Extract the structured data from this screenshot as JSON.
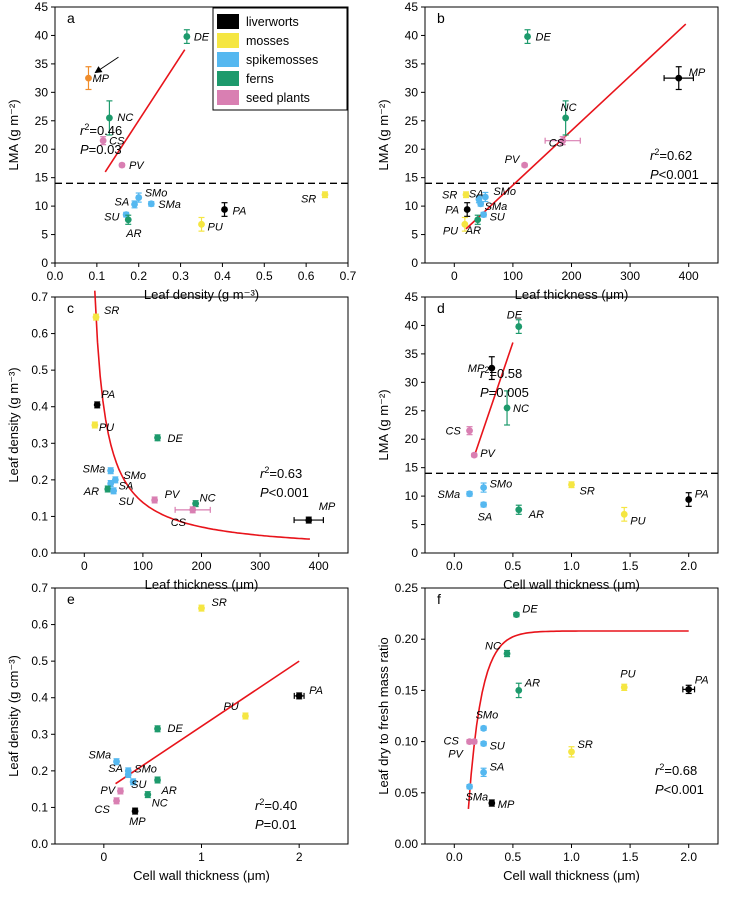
{
  "figure_legend": {
    "groups": [
      {
        "name": "liverworts",
        "color": "#000000"
      },
      {
        "name": "mosses",
        "color": "#f5e642"
      },
      {
        "name": "spikemosses",
        "color": "#55b8f0"
      },
      {
        "name": "ferns",
        "color": "#1d9a6c"
      },
      {
        "name": "seed plants",
        "color": "#d97fb2"
      }
    ]
  },
  "chart_data": [
    {
      "panel": "a",
      "type": "scatter",
      "xlabel": "Leaf density (g m⁻³)",
      "ylabel": "LMA (g m⁻²)",
      "xlim": [
        0,
        0.7
      ],
      "ylim": [
        0,
        45
      ],
      "xticks": [
        "0.0",
        "0.1",
        "0.2",
        "0.3",
        "0.4",
        "0.5",
        "0.6",
        "0.7"
      ],
      "yticks": [
        "0",
        "5",
        "10",
        "15",
        "20",
        "25",
        "30",
        "35",
        "40",
        "45"
      ],
      "threshold": 14,
      "fit": {
        "kind": "linear",
        "points": [
          [
            0.12,
            16.0
          ],
          [
            0.31,
            37.5
          ]
        ]
      },
      "stats": {
        "r2": "=0.46",
        "p": "=0.03"
      },
      "arrow": true,
      "points": [
        {
          "label": "MP",
          "group": "liverworts",
          "color": "#f08c2a",
          "x": 0.08,
          "y": 32.5,
          "yerr": 2.0
        },
        {
          "label": "DE",
          "group": "ferns",
          "x": 0.315,
          "y": 39.8,
          "yerr": 1.2
        },
        {
          "label": "NC",
          "group": "ferns",
          "x": 0.13,
          "y": 25.5,
          "yerr": 3.0
        },
        {
          "label": "CS",
          "group": "seed plants",
          "x": 0.115,
          "y": 21.5,
          "yerr": 0.7
        },
        {
          "label": "PV",
          "group": "seed plants",
          "x": 0.16,
          "y": 17.2,
          "yerr": 0.3
        },
        {
          "label": "SMo",
          "group": "spikemosses",
          "x": 0.2,
          "y": 11.5,
          "yerr": 0.8
        },
        {
          "label": "SA",
          "group": "spikemosses",
          "x": 0.19,
          "y": 10.3,
          "yerr": 0.6
        },
        {
          "label": "SMa",
          "group": "spikemosses",
          "x": 0.23,
          "y": 10.4,
          "yerr": 0.4
        },
        {
          "label": "SU",
          "group": "spikemosses",
          "x": 0.17,
          "y": 8.5,
          "yerr": 0.4
        },
        {
          "label": "AR",
          "group": "ferns",
          "x": 0.175,
          "y": 7.6,
          "yerr": 0.8
        },
        {
          "label": "PU",
          "group": "mosses",
          "x": 0.35,
          "y": 6.8,
          "yerr": 1.2
        },
        {
          "label": "PA",
          "group": "liverworts",
          "x": 0.405,
          "y": 9.4,
          "yerr": 1.2
        },
        {
          "label": "SR",
          "group": "mosses",
          "x": 0.645,
          "y": 12.0,
          "yerr": 0.5
        }
      ]
    },
    {
      "panel": "b",
      "type": "scatter",
      "xlabel": "Leaf thickness (μm)",
      "ylabel": "LMA (g m⁻²)",
      "xlim": [
        -50,
        450
      ],
      "ylim": [
        0,
        45
      ],
      "xticks": [
        "0",
        "100",
        "200",
        "300",
        "400"
      ],
      "yticks": [
        "0",
        "5",
        "10",
        "15",
        "20",
        "25",
        "30",
        "35",
        "40",
        "45"
      ],
      "threshold": 14,
      "fit": {
        "kind": "linear",
        "points": [
          [
            20,
            6.0
          ],
          [
            395,
            42.0
          ]
        ]
      },
      "stats": {
        "r2": "=0.62",
        "p": "<0.001"
      },
      "points": [
        {
          "label": "DE",
          "group": "ferns",
          "x": 125,
          "y": 39.8,
          "yerr": 1.2
        },
        {
          "label": "MP",
          "group": "liverworts",
          "x": 383,
          "y": 32.5,
          "yerr": 2.0,
          "xerr": 25
        },
        {
          "label": "NC",
          "group": "ferns",
          "x": 190,
          "y": 25.5,
          "yerr": 3.0
        },
        {
          "label": "CS",
          "group": "seed plants",
          "x": 185,
          "y": 21.5,
          "yerr": 0.7,
          "xerr": 30
        },
        {
          "label": "PV",
          "group": "seed plants",
          "x": 120,
          "y": 17.2,
          "yerr": 0.3
        },
        {
          "label": "SA",
          "group": "spikemosses",
          "x": 42,
          "y": 11.2,
          "yerr": 0.6
        },
        {
          "label": "SMo",
          "group": "spikemosses",
          "x": 53,
          "y": 11.6,
          "yerr": 0.8
        },
        {
          "label": "SR",
          "group": "mosses",
          "x": 20,
          "y": 12.0,
          "yerr": 0.5
        },
        {
          "label": "SMa",
          "group": "spikemosses",
          "x": 45,
          "y": 10.4,
          "yerr": 0.4
        },
        {
          "label": "PA",
          "group": "liverworts",
          "x": 22,
          "y": 9.4,
          "yerr": 1.2
        },
        {
          "label": "SU",
          "group": "spikemosses",
          "x": 50,
          "y": 8.5,
          "yerr": 0.4
        },
        {
          "label": "PU",
          "group": "mosses",
          "x": 18,
          "y": 6.8,
          "yerr": 1.2
        },
        {
          "label": "AR",
          "group": "ferns",
          "x": 40,
          "y": 7.6,
          "yerr": 0.8
        }
      ]
    },
    {
      "panel": "c",
      "type": "scatter",
      "xlabel": "Leaf thickness (μm)",
      "ylabel": "Leaf density (g m⁻³)",
      "xlim": [
        -50,
        450
      ],
      "ylim": [
        0,
        0.7
      ],
      "xticks": [
        "0",
        "100",
        "200",
        "300",
        "400"
      ],
      "yticks": [
        "0.0",
        "0.1",
        "0.2",
        "0.3",
        "0.4",
        "0.5",
        "0.6",
        "0.7"
      ],
      "fit": {
        "kind": "power",
        "a": 11.5,
        "b": -0.96,
        "x0": 18,
        "x1": 385
      },
      "stats": {
        "r2": "=0.63",
        "p": "<0.001"
      },
      "points": [
        {
          "label": "SR",
          "group": "mosses",
          "x": 20,
          "y": 0.645,
          "yerr": 0.008
        },
        {
          "label": "PA",
          "group": "liverworts",
          "x": 22,
          "y": 0.405,
          "yerr": 0.008
        },
        {
          "label": "PU",
          "group": "mosses",
          "x": 18,
          "y": 0.35,
          "yerr": 0.008
        },
        {
          "label": "DE",
          "group": "ferns",
          "x": 125,
          "y": 0.315,
          "yerr": 0.008
        },
        {
          "label": "SMa",
          "group": "spikemosses",
          "x": 45,
          "y": 0.225,
          "yerr": 0.008
        },
        {
          "label": "SMo",
          "group": "spikemosses",
          "x": 53,
          "y": 0.2,
          "yerr": 0.008
        },
        {
          "label": "SA",
          "group": "spikemosses",
          "x": 45,
          "y": 0.19,
          "yerr": 0.008
        },
        {
          "label": "AR",
          "group": "ferns",
          "x": 40,
          "y": 0.175,
          "yerr": 0.008
        },
        {
          "label": "SU",
          "group": "spikemosses",
          "x": 50,
          "y": 0.17,
          "yerr": 0.008
        },
        {
          "label": "PV",
          "group": "seed plants",
          "x": 120,
          "y": 0.145,
          "yerr": 0.008
        },
        {
          "label": "NC",
          "group": "ferns",
          "x": 190,
          "y": 0.135,
          "yerr": 0.008
        },
        {
          "label": "CS",
          "group": "seed plants",
          "x": 185,
          "y": 0.118,
          "yerr": 0.008,
          "xerr": 30
        },
        {
          "label": "MP",
          "group": "liverworts",
          "x": 383,
          "y": 0.09,
          "yerr": 0.008,
          "xerr": 25
        }
      ]
    },
    {
      "panel": "d",
      "type": "scatter",
      "xlabel": "Cell wall thickness (μm)",
      "ylabel": "LMA (g m⁻²)",
      "xlim": [
        -0.25,
        2.25
      ],
      "ylim": [
        0,
        45
      ],
      "xticks": [
        "0.0",
        "0.5",
        "1.0",
        "1.5",
        "2.0"
      ],
      "yticks": [
        "0",
        "5",
        "10",
        "15",
        "20",
        "25",
        "30",
        "35",
        "40",
        "45"
      ],
      "threshold": 14,
      "fit": {
        "kind": "linear",
        "points": [
          [
            0.17,
            17.0
          ],
          [
            0.5,
            37.0
          ]
        ]
      },
      "stats": {
        "r2": "=0.58",
        "p": "=0.005"
      },
      "points": [
        {
          "label": "DE",
          "group": "ferns",
          "x": 0.55,
          "y": 39.8,
          "yerr": 1.2
        },
        {
          "label": "MP",
          "group": "liverworts",
          "x": 0.32,
          "y": 32.5,
          "yerr": 2.0
        },
        {
          "label": "NC",
          "group": "ferns",
          "x": 0.45,
          "y": 25.5,
          "yerr": 3.0
        },
        {
          "label": "CS",
          "group": "seed plants",
          "x": 0.13,
          "y": 21.5,
          "yerr": 0.7
        },
        {
          "label": "PV",
          "group": "seed plants",
          "x": 0.17,
          "y": 17.2,
          "yerr": 0.3
        },
        {
          "label": "SMo",
          "group": "spikemosses",
          "x": 0.25,
          "y": 11.5,
          "yerr": 0.8
        },
        {
          "label": "SMa",
          "group": "spikemosses",
          "x": 0.13,
          "y": 10.4,
          "yerr": 0.4
        },
        {
          "label": "SA",
          "group": "spikemosses",
          "x": 0.25,
          "y": 8.5,
          "yerr": 0.4
        },
        {
          "label": "SR",
          "group": "mosses",
          "x": 1.0,
          "y": 12.0,
          "yerr": 0.5
        },
        {
          "label": "AR",
          "group": "ferns",
          "x": 0.55,
          "y": 7.6,
          "yerr": 0.8
        },
        {
          "label": "PU",
          "group": "mosses",
          "x": 1.45,
          "y": 6.8,
          "yerr": 1.2
        },
        {
          "label": "PA",
          "group": "liverworts",
          "x": 2.0,
          "y": 9.4,
          "yerr": 1.2
        }
      ]
    },
    {
      "panel": "e",
      "type": "scatter",
      "xlabel": "Cell wall thickness (μm)",
      "ylabel": "Leaf density (g cm⁻³)",
      "xlim": [
        -0.5,
        2.5
      ],
      "ylim": [
        0,
        0.7
      ],
      "xticks": [
        "0",
        "1",
        "2"
      ],
      "yticks": [
        "0.0",
        "0.1",
        "0.2",
        "0.3",
        "0.4",
        "0.5",
        "0.6",
        "0.7"
      ],
      "fit": {
        "kind": "linear",
        "points": [
          [
            0.12,
            0.165
          ],
          [
            2.0,
            0.5
          ]
        ]
      },
      "stats": {
        "r2": "=0.40",
        "p": "=0.01"
      },
      "points": [
        {
          "label": "SR",
          "group": "mosses",
          "x": 1.0,
          "y": 0.645,
          "yerr": 0.008
        },
        {
          "label": "PA",
          "group": "liverworts",
          "x": 2.0,
          "y": 0.405,
          "yerr": 0.008,
          "xerr": 0.05
        },
        {
          "label": "PU",
          "group": "mosses",
          "x": 1.45,
          "y": 0.35,
          "yerr": 0.008
        },
        {
          "label": "DE",
          "group": "ferns",
          "x": 0.55,
          "y": 0.315,
          "yerr": 0.008
        },
        {
          "label": "SMa",
          "group": "spikemosses",
          "x": 0.13,
          "y": 0.225,
          "yerr": 0.008
        },
        {
          "label": "SA",
          "group": "spikemosses",
          "x": 0.25,
          "y": 0.2,
          "yerr": 0.008
        },
        {
          "label": "SMo",
          "group": "spikemosses",
          "x": 0.25,
          "y": 0.19,
          "yerr": 0.008
        },
        {
          "label": "SU",
          "group": "spikemosses",
          "x": 0.3,
          "y": 0.17,
          "yerr": 0.008
        },
        {
          "label": "AR",
          "group": "ferns",
          "x": 0.55,
          "y": 0.175,
          "yerr": 0.008
        },
        {
          "label": "PV",
          "group": "seed plants",
          "x": 0.17,
          "y": 0.145,
          "yerr": 0.008
        },
        {
          "label": "NC",
          "group": "ferns",
          "x": 0.45,
          "y": 0.135,
          "yerr": 0.008
        },
        {
          "label": "CS",
          "group": "seed plants",
          "x": 0.13,
          "y": 0.118,
          "yerr": 0.008
        },
        {
          "label": "MP",
          "group": "liverworts",
          "x": 0.32,
          "y": 0.09,
          "yerr": 0.008
        }
      ]
    },
    {
      "panel": "f",
      "type": "scatter",
      "xlabel": "Cell wall thickness (μm)",
      "ylabel": "Leaf dry to fresh mass ratio",
      "xlim": [
        -0.25,
        2.25
      ],
      "ylim": [
        0,
        0.25
      ],
      "xticks": [
        "0.0",
        "0.5",
        "1.0",
        "1.5",
        "2.0"
      ],
      "yticks": [
        "0.00",
        "0.05",
        "0.10",
        "0.15",
        "0.20",
        "0.25"
      ],
      "fit": {
        "kind": "exp_rise",
        "a": 0.208,
        "k": 9.0,
        "x0": 0.12,
        "x1": 2.0
      },
      "stats": {
        "r2": "=0.68",
        "p": "<0.001"
      },
      "points": [
        {
          "label": "DE",
          "group": "ferns",
          "x": 0.53,
          "y": 0.224,
          "yerr": 0.002
        },
        {
          "label": "NC",
          "group": "ferns",
          "x": 0.45,
          "y": 0.186,
          "yerr": 0.003
        },
        {
          "label": "AR",
          "group": "ferns",
          "x": 0.55,
          "y": 0.15,
          "yerr": 0.007
        },
        {
          "label": "PU",
          "group": "mosses",
          "x": 1.45,
          "y": 0.153,
          "yerr": 0.003
        },
        {
          "label": "PA",
          "group": "liverworts",
          "x": 2.0,
          "y": 0.151,
          "yerr": 0.004,
          "xerr": 0.05
        },
        {
          "label": "SMo",
          "group": "spikemosses",
          "x": 0.25,
          "y": 0.113,
          "yerr": 0.002
        },
        {
          "label": "CS",
          "group": "seed plants",
          "x": 0.13,
          "y": 0.1,
          "yerr": 0.002
        },
        {
          "label": "PV",
          "group": "seed plants",
          "x": 0.17,
          "y": 0.1,
          "yerr": 0.002
        },
        {
          "label": "SU",
          "group": "spikemosses",
          "x": 0.25,
          "y": 0.098,
          "yerr": 0.002
        },
        {
          "label": "SR",
          "group": "mosses",
          "x": 1.0,
          "y": 0.09,
          "yerr": 0.005
        },
        {
          "label": "SA",
          "group": "spikemosses",
          "x": 0.25,
          "y": 0.07,
          "yerr": 0.004
        },
        {
          "label": "SMa",
          "group": "spikemosses",
          "x": 0.13,
          "y": 0.056,
          "yerr": 0.002
        },
        {
          "label": "MP",
          "group": "liverworts",
          "x": 0.32,
          "y": 0.04,
          "yerr": 0.003
        }
      ]
    }
  ]
}
